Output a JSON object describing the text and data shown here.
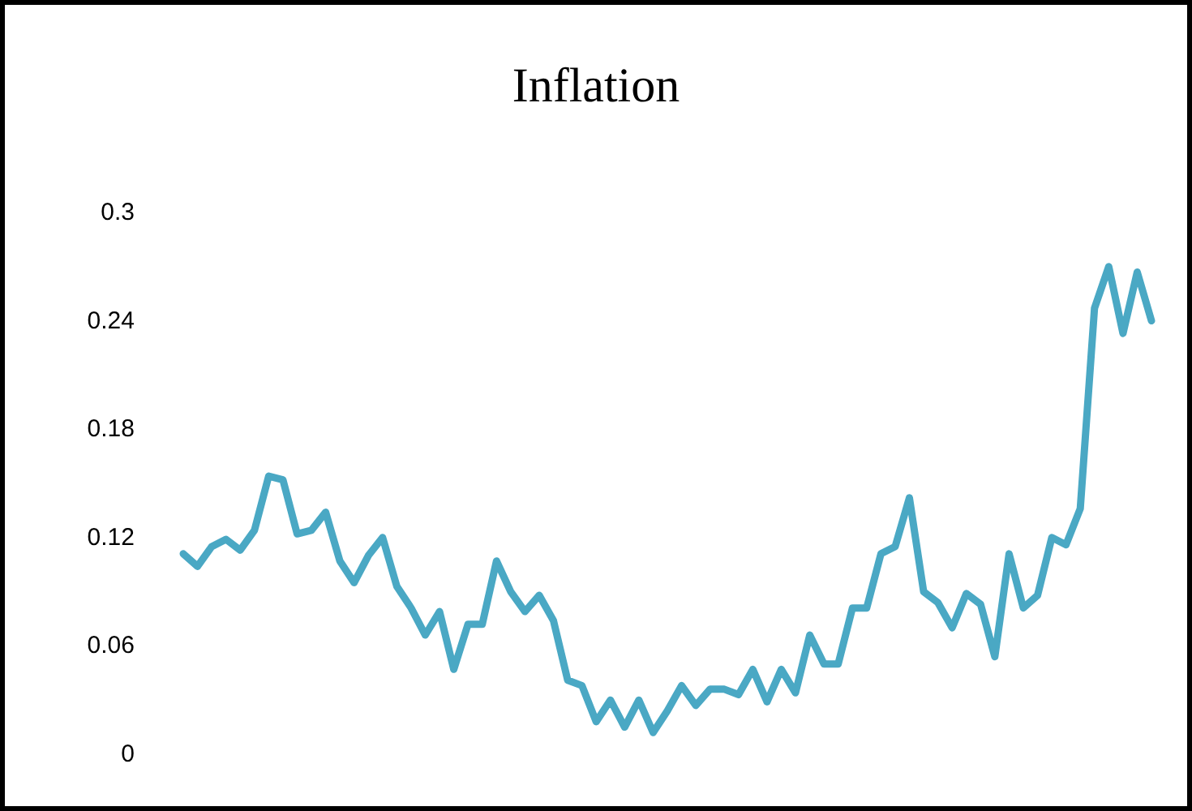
{
  "chart_data": {
    "type": "line",
    "title": "Inflation",
    "categories": [
      null,
      null,
      null,
      null,
      null,
      null,
      null,
      null,
      null,
      null,
      null,
      null,
      null,
      null,
      null,
      null,
      null,
      null,
      null,
      null,
      null,
      null,
      null,
      null,
      null,
      null,
      null,
      null,
      null,
      null,
      null,
      null,
      null,
      null,
      null,
      null,
      null,
      null,
      null,
      null,
      null,
      null,
      null,
      null,
      null,
      null,
      null,
      null,
      null,
      null,
      null,
      null,
      null,
      null,
      null,
      null,
      null,
      null,
      null,
      null,
      null,
      null,
      null,
      null,
      null,
      null,
      null,
      null,
      null
    ],
    "series": [
      {
        "color": "#4aa8c4",
        "values": [
          0.111,
          0.104,
          0.115,
          0.119,
          0.113,
          0.124,
          0.154,
          0.152,
          0.122,
          0.124,
          0.134,
          0.107,
          0.095,
          0.11,
          0.12,
          0.093,
          0.081,
          0.066,
          0.079,
          0.047,
          0.072,
          0.072,
          0.107,
          0.09,
          0.079,
          0.088,
          0.074,
          0.041,
          0.038,
          0.018,
          0.03,
          0.015,
          0.03,
          0.012,
          0.024,
          0.038,
          0.027,
          0.036,
          0.036,
          0.033,
          0.047,
          0.029,
          0.047,
          0.034,
          0.066,
          0.05,
          0.05,
          0.081,
          0.081,
          0.111,
          0.115,
          0.142,
          0.09,
          0.084,
          0.07,
          0.089,
          0.083,
          0.054,
          0.111,
          0.081,
          0.088,
          0.12,
          0.116,
          0.136,
          0.247,
          0.27,
          0.233,
          0.267,
          0.24
        ]
      }
    ],
    "ylim": [
      0,
      0.3
    ],
    "yticks": [
      0,
      0.06,
      0.12,
      0.18,
      0.24,
      0.3
    ],
    "grid": false,
    "marker": "none",
    "line_style": "solid",
    "tick_labels": "y"
  }
}
